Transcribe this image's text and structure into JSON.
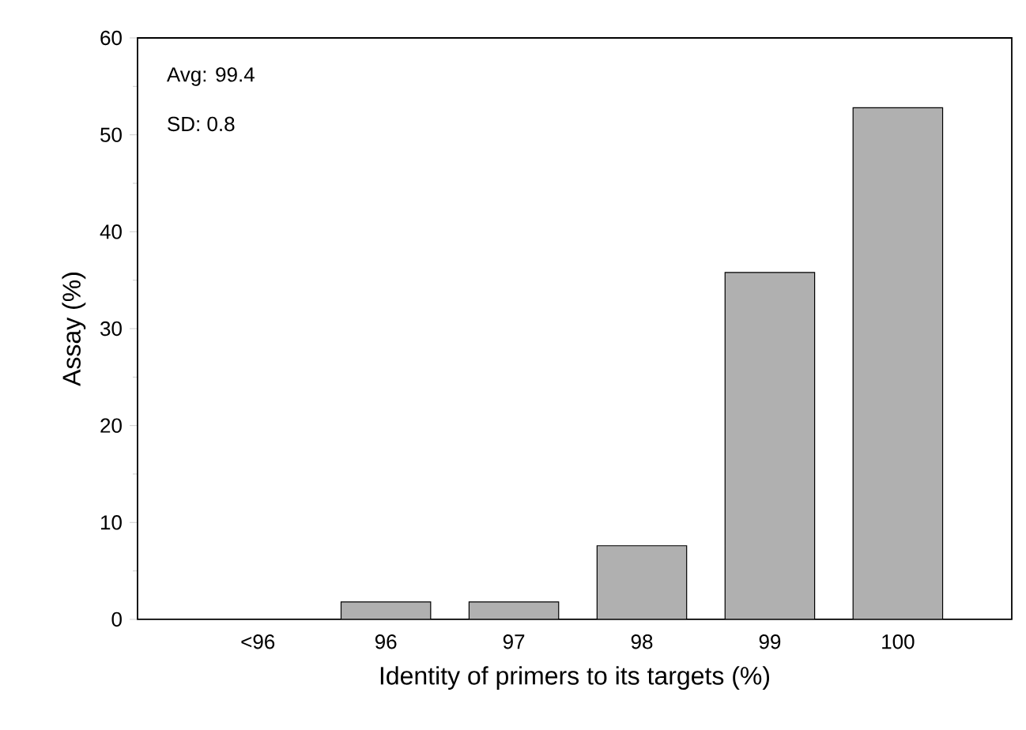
{
  "chart_data": {
    "type": "bar",
    "xlabel": "Identity of primers to its targets (%)",
    "ylabel": "Assay (%)",
    "categories": [
      "<96",
      "96",
      "97",
      "98",
      "99",
      "100"
    ],
    "values": [
      0,
      1.8,
      1.8,
      7.6,
      35.8,
      52.8
    ],
    "color": "#b0b0b0",
    "ylim": [
      0,
      60
    ],
    "yticks": [
      0,
      10,
      20,
      30,
      40,
      50,
      60
    ],
    "annotations": [
      "Avg: 99.4",
      "SD: 0.8"
    ]
  }
}
